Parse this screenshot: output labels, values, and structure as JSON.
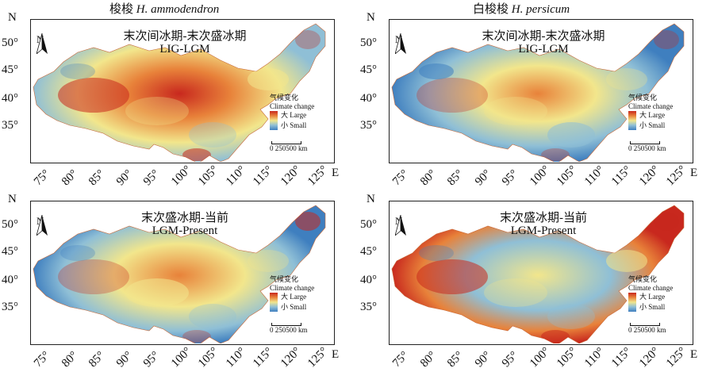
{
  "columns": [
    {
      "title_cn": "梭梭",
      "title_sp": "H. ammodendron"
    },
    {
      "title_cn": "白梭梭",
      "title_sp": "H. persicum"
    }
  ],
  "panels": [
    {
      "period_cn": "末次间冰期-末次盛冰期",
      "period_en": "LIG-LGM"
    },
    {
      "period_cn": "末次间冰期-末次盛冰期",
      "period_en": "LIG-LGM"
    },
    {
      "period_cn": "末次盛冰期-当前",
      "period_en": "LGM-Present"
    },
    {
      "period_cn": "末次盛冰期-当前",
      "period_en": "LGM-Present"
    }
  ],
  "axes": {
    "y_ticks": [
      "50°",
      "45°",
      "40°",
      "35°"
    ],
    "x_ticks": [
      "75°",
      "80°",
      "85°",
      "90°",
      "95°",
      "100°",
      "105°",
      "110°",
      "115°",
      "120°",
      "125°"
    ],
    "north_label": "N",
    "east_label": "E"
  },
  "legend": {
    "title_cn": "气候变化",
    "title_en": "Climate change",
    "large_cn": "大",
    "large_en": "Large",
    "small_cn": "小",
    "small_en": "Small",
    "colors": [
      "#c8281e",
      "#e8823a",
      "#f2e68c",
      "#8fbfd6",
      "#3f7fbf"
    ]
  },
  "scale_bar": {
    "labels": "0 250500 km"
  },
  "north_arrow": {
    "label": "N"
  }
}
